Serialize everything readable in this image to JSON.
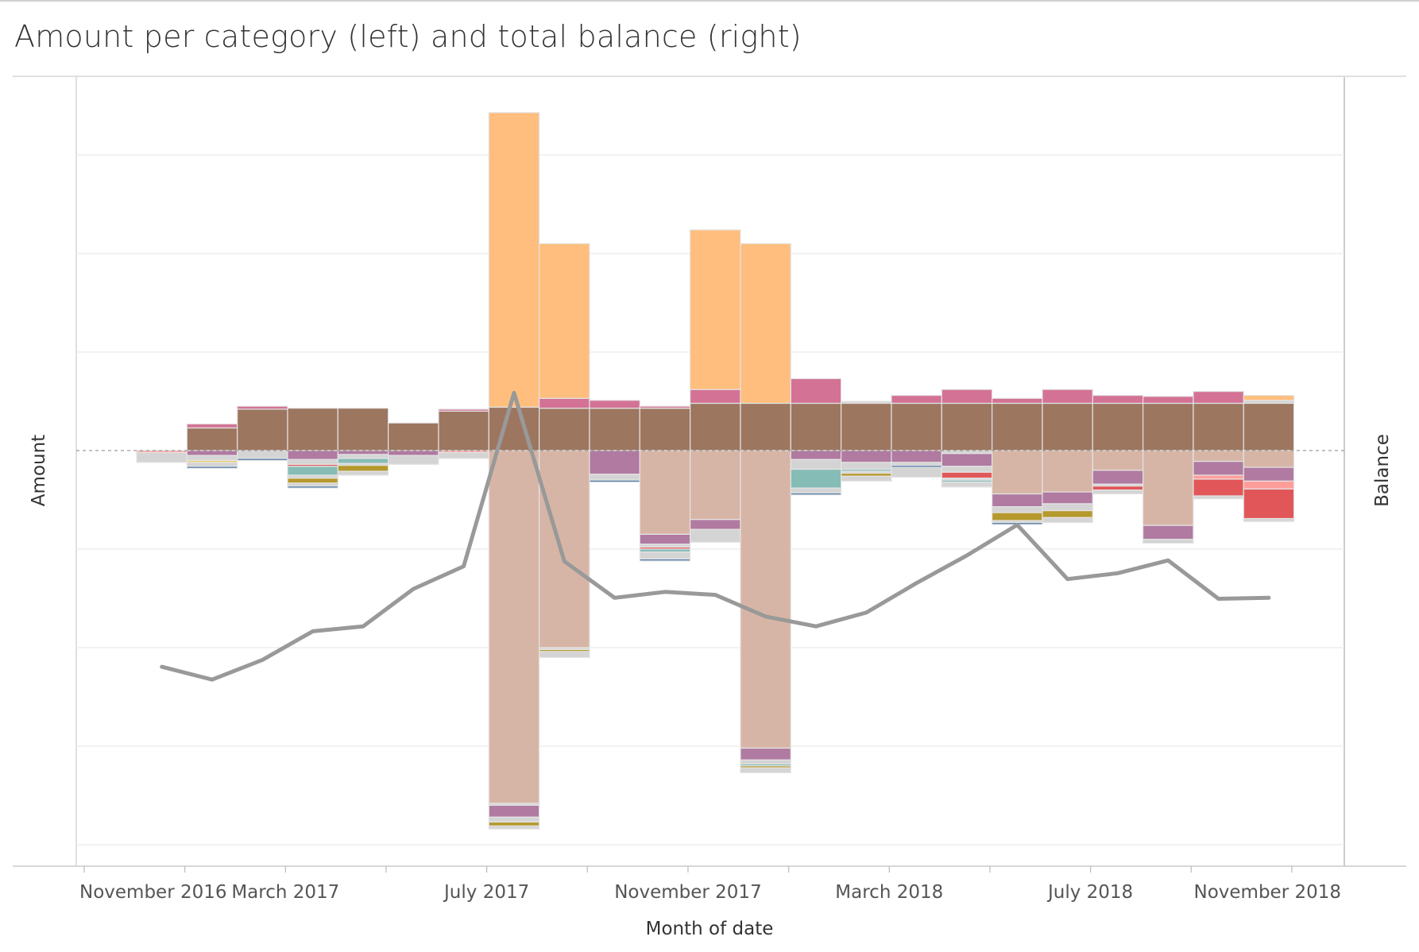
{
  "chart_data": {
    "type": "bar",
    "subtype": "stacked bar with line overlay (dual axis)",
    "title": "Amount per category (left) and total balance (right)",
    "xlabel": "Month of date",
    "ylabel_left": "Amount",
    "ylabel_right": "Balance",
    "x_tick_labels": [
      "November 2016",
      "March 2017",
      "July 2017",
      "November 2017",
      "March 2018",
      "July 2018",
      "November 2018"
    ],
    "x_tick_months": [
      "2016-11",
      "2017-03",
      "2017-07",
      "2017-11",
      "2018-03",
      "2018-07",
      "2018-11"
    ],
    "categories": [
      "2016-11",
      "2016-12",
      "2017-01",
      "2017-02",
      "2017-03",
      "2017-04",
      "2017-05",
      "2017-06",
      "2017-07",
      "2017-08",
      "2017-09",
      "2017-10",
      "2017-11",
      "2017-12",
      "2018-01",
      "2018-02",
      "2018-03",
      "2018-04",
      "2018-05",
      "2018-06",
      "2018-07",
      "2018-08",
      "2018-09",
      "2018-10",
      "2018-11"
    ],
    "left_axis_ylim": [
      -4.0,
      3.8
    ],
    "left_axis_tick_values": [
      3,
      2,
      1,
      0,
      -1,
      -2,
      -3,
      -4
    ],
    "left_axis_tick_labels_shown": false,
    "right_axis_tick_labels_shown": false,
    "grid": "horizontal",
    "zero_line": "dashed",
    "legend": "none",
    "series_colors": {
      "income_large": "#ffbe7d",
      "income_small": "#d37295",
      "income_main": "#9d7660",
      "expense_main": "#d7b5a6",
      "expense_purple": "#b07aa1",
      "expense_teal": "#86bcb6",
      "expense_olive": "#b6992d",
      "expense_red": "#e15759",
      "expense_pink": "#ff9d9a",
      "expense_blue": "#4e79a7",
      "expense_yellow": "#f1ce63",
      "expense_other": "#d4d4d4",
      "balance_line": "#999999"
    },
    "stacked_segments": [
      {
        "month": "2016-11",
        "pos": [],
        "neg": [
          [
            "expense_pink",
            0.02
          ],
          [
            "expense_other",
            0.1
          ]
        ]
      },
      {
        "month": "2016-12",
        "pos": [
          [
            "income_main",
            0.23
          ],
          [
            "income_small",
            0.04
          ]
        ],
        "neg": [
          [
            "expense_purple",
            0.05
          ],
          [
            "expense_other",
            0.05
          ],
          [
            "expense_yellow",
            0.02
          ],
          [
            "expense_other",
            0.04
          ],
          [
            "expense_blue",
            0.02
          ]
        ]
      },
      {
        "month": "2017-01",
        "pos": [
          [
            "income_main",
            0.42
          ],
          [
            "income_small",
            0.03
          ]
        ],
        "neg": [
          [
            "expense_other",
            0.08
          ],
          [
            "expense_blue",
            0.02
          ]
        ]
      },
      {
        "month": "2017-02",
        "pos": [
          [
            "income_main",
            0.43
          ]
        ],
        "neg": [
          [
            "expense_purple",
            0.09
          ],
          [
            "expense_other",
            0.05
          ],
          [
            "expense_red",
            0.02
          ],
          [
            "expense_teal",
            0.09
          ],
          [
            "expense_other",
            0.03
          ],
          [
            "expense_olive",
            0.05
          ],
          [
            "expense_other",
            0.03
          ],
          [
            "expense_blue",
            0.02
          ]
        ]
      },
      {
        "month": "2017-03",
        "pos": [
          [
            "income_main",
            0.43
          ]
        ],
        "neg": [
          [
            "expense_purple",
            0.04
          ],
          [
            "expense_other",
            0.04
          ],
          [
            "expense_teal",
            0.05
          ],
          [
            "expense_other",
            0.02
          ],
          [
            "expense_olive",
            0.06
          ],
          [
            "expense_other",
            0.04
          ]
        ]
      },
      {
        "month": "2017-04",
        "pos": [
          [
            "income_main",
            0.28
          ]
        ],
        "neg": [
          [
            "expense_purple",
            0.05
          ],
          [
            "expense_other",
            0.09
          ]
        ]
      },
      {
        "month": "2017-05",
        "pos": [
          [
            "income_main",
            0.4
          ],
          [
            "income_small",
            0.02
          ]
        ],
        "neg": [
          [
            "expense_pink",
            0.02
          ],
          [
            "expense_other",
            0.06
          ]
        ]
      },
      {
        "month": "2017-06",
        "pos": [
          [
            "income_main",
            0.44
          ],
          [
            "income_large",
            2.99
          ]
        ],
        "neg": [
          [
            "expense_main",
            3.58
          ],
          [
            "expense_other",
            0.02
          ],
          [
            "expense_purple",
            0.12
          ],
          [
            "expense_other",
            0.05
          ],
          [
            "expense_olive",
            0.04
          ],
          [
            "expense_other",
            0.03
          ]
        ]
      },
      {
        "month": "2017-07",
        "pos": [
          [
            "income_main",
            0.43
          ],
          [
            "income_small",
            0.1
          ],
          [
            "income_large",
            1.57
          ]
        ],
        "neg": [
          [
            "expense_main",
            2.0
          ],
          [
            "expense_other",
            0.02
          ],
          [
            "expense_olive",
            0.02
          ],
          [
            "expense_other",
            0.06
          ]
        ]
      },
      {
        "month": "2017-08",
        "pos": [
          [
            "income_main",
            0.43
          ],
          [
            "income_small",
            0.08
          ]
        ],
        "neg": [
          [
            "expense_purple",
            0.24
          ],
          [
            "expense_other",
            0.06
          ],
          [
            "expense_blue",
            0.02
          ]
        ]
      },
      {
        "month": "2017-09",
        "pos": [
          [
            "income_main",
            0.43
          ],
          [
            "income_small",
            0.02
          ]
        ],
        "neg": [
          [
            "expense_main",
            0.85
          ],
          [
            "expense_purple",
            0.1
          ],
          [
            "expense_other",
            0.03
          ],
          [
            "expense_red",
            0.02
          ],
          [
            "expense_teal",
            0.03
          ],
          [
            "expense_other",
            0.07
          ],
          [
            "expense_blue",
            0.02
          ]
        ]
      },
      {
        "month": "2017-10",
        "pos": [
          [
            "income_main",
            0.48
          ],
          [
            "income_small",
            0.14
          ],
          [
            "income_large",
            1.62
          ]
        ],
        "neg": [
          [
            "expense_main",
            0.7
          ],
          [
            "expense_purple",
            0.1
          ],
          [
            "expense_other",
            0.13
          ]
        ]
      },
      {
        "month": "2017-11",
        "pos": [
          [
            "income_main",
            0.48
          ],
          [
            "income_large",
            1.62
          ]
        ],
        "neg": [
          [
            "expense_main",
            3.02
          ],
          [
            "expense_purple",
            0.12
          ],
          [
            "expense_other",
            0.04
          ],
          [
            "expense_teal",
            0.02
          ],
          [
            "expense_olive",
            0.02
          ],
          [
            "expense_other",
            0.05
          ]
        ]
      },
      {
        "month": "2017-12",
        "pos": [
          [
            "income_main",
            0.48
          ],
          [
            "income_small",
            0.25
          ]
        ],
        "neg": [
          [
            "expense_purple",
            0.09
          ],
          [
            "expense_other",
            0.1
          ],
          [
            "expense_teal",
            0.19
          ],
          [
            "expense_other",
            0.05
          ],
          [
            "expense_blue",
            0.02
          ]
        ]
      },
      {
        "month": "2018-01",
        "pos": [
          [
            "income_main",
            0.48
          ],
          [
            "income_other_small",
            0.02
          ]
        ],
        "neg": [
          [
            "expense_purple",
            0.12
          ],
          [
            "expense_other",
            0.07
          ],
          [
            "expense_teal",
            0.02
          ],
          [
            "expense_other",
            0.02
          ],
          [
            "expense_olive",
            0.03
          ],
          [
            "expense_other",
            0.05
          ]
        ]
      },
      {
        "month": "2018-02",
        "pos": [
          [
            "income_main",
            0.48
          ],
          [
            "income_small",
            0.08
          ]
        ],
        "neg": [
          [
            "expense_purple",
            0.12
          ],
          [
            "expense_other",
            0.03
          ],
          [
            "expense_blue",
            0.02
          ],
          [
            "expense_other",
            0.1
          ]
        ]
      },
      {
        "month": "2018-03",
        "pos": [
          [
            "income_main",
            0.48
          ],
          [
            "income_small",
            0.14
          ]
        ],
        "neg": [
          [
            "expense_other",
            0.03
          ],
          [
            "expense_purple",
            0.13
          ],
          [
            "expense_other",
            0.06
          ],
          [
            "expense_red",
            0.06
          ],
          [
            "expense_other",
            0.02
          ],
          [
            "expense_teal",
            0.02
          ],
          [
            "expense_other",
            0.05
          ]
        ]
      },
      {
        "month": "2018-04",
        "pos": [
          [
            "income_main",
            0.48
          ],
          [
            "income_small",
            0.05
          ]
        ],
        "neg": [
          [
            "expense_main",
            0.44
          ],
          [
            "expense_purple",
            0.13
          ],
          [
            "expense_other",
            0.06
          ],
          [
            "expense_olive",
            0.08
          ],
          [
            "expense_other",
            0.02
          ],
          [
            "expense_blue",
            0.02
          ]
        ]
      },
      {
        "month": "2018-05",
        "pos": [
          [
            "income_main",
            0.48
          ],
          [
            "income_small",
            0.14
          ]
        ],
        "neg": [
          [
            "expense_main",
            0.42
          ],
          [
            "expense_purple",
            0.12
          ],
          [
            "expense_other",
            0.07
          ],
          [
            "expense_olive",
            0.07
          ],
          [
            "expense_other",
            0.05
          ]
        ]
      },
      {
        "month": "2018-06",
        "pos": [
          [
            "income_main",
            0.48
          ],
          [
            "income_small",
            0.08
          ]
        ],
        "neg": [
          [
            "expense_main",
            0.2
          ],
          [
            "expense_purple",
            0.14
          ],
          [
            "expense_other",
            0.02
          ],
          [
            "expense_red",
            0.04
          ],
          [
            "expense_other",
            0.04
          ]
        ]
      },
      {
        "month": "2018-07",
        "pos": [
          [
            "income_main",
            0.48
          ],
          [
            "income_small",
            0.07
          ]
        ],
        "neg": [
          [
            "expense_main",
            0.76
          ],
          [
            "expense_purple",
            0.14
          ],
          [
            "expense_other",
            0.04
          ]
        ]
      },
      {
        "month": "2018-08",
        "pos": [
          [
            "income_main",
            0.48
          ],
          [
            "income_small",
            0.12
          ]
        ],
        "neg": [
          [
            "expense_main",
            0.11
          ],
          [
            "expense_purple",
            0.14
          ],
          [
            "expense_pink",
            0.04
          ],
          [
            "expense_red",
            0.17
          ],
          [
            "expense_other",
            0.03
          ]
        ]
      },
      {
        "month": "2018-09",
        "pos": [
          [
            "income_main",
            0.48
          ],
          [
            "income_other_small",
            0.03
          ],
          [
            "income_large",
            0.05
          ]
        ],
        "neg": [
          [
            "expense_main",
            0.17
          ],
          [
            "expense_purple",
            0.14
          ],
          [
            "expense_pink",
            0.08
          ],
          [
            "expense_red",
            0.3
          ],
          [
            "expense_other",
            0.03
          ]
        ]
      }
    ],
    "balance_line": {
      "name": "",
      "months": [
        "2016-11",
        "2016-12",
        "2017-01",
        "2017-02",
        "2017-03",
        "2017-04",
        "2017-05",
        "2017-06",
        "2017-07",
        "2017-08",
        "2017-09",
        "2017-10",
        "2017-11",
        "2017-12",
        "2018-01",
        "2018-02",
        "2018-03",
        "2018-04",
        "2018-05",
        "2018-06",
        "2018-07",
        "2018-08",
        "2018-09"
      ],
      "values": [
        0.83,
        0.7,
        0.9,
        1.19,
        1.24,
        1.62,
        1.85,
        3.61,
        1.9,
        1.53,
        1.59,
        1.56,
        1.34,
        1.24,
        1.38,
        1.68,
        1.96,
        2.27,
        1.72,
        1.78,
        1.91,
        1.52,
        1.53
      ],
      "color": "#999999"
    }
  }
}
